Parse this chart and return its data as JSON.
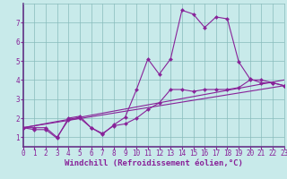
{
  "background_color": "#c8eaea",
  "plot_bg_color": "#c8eaea",
  "line_color": "#882299",
  "grid_color": "#88bbbb",
  "axis_color": "#663388",
  "xlabel": "Windchill (Refroidissement éolien,°C)",
  "xlim": [
    0,
    23
  ],
  "ylim": [
    0.5,
    8.0
  ],
  "xticks": [
    0,
    1,
    2,
    3,
    4,
    5,
    6,
    7,
    8,
    9,
    10,
    11,
    12,
    13,
    14,
    15,
    16,
    17,
    18,
    19,
    20,
    21,
    22,
    23
  ],
  "yticks": [
    1,
    2,
    3,
    4,
    5,
    6,
    7
  ],
  "line1_x": [
    0,
    1,
    2,
    3,
    4,
    5,
    6,
    7,
    8,
    9,
    10,
    11,
    12,
    13,
    14,
    15,
    16,
    17,
    18,
    19,
    20,
    21,
    22,
    23
  ],
  "line1_y": [
    1.5,
    1.5,
    1.5,
    1.0,
    1.9,
    2.0,
    1.5,
    1.2,
    1.6,
    1.7,
    2.0,
    2.45,
    2.8,
    3.5,
    3.5,
    3.4,
    3.5,
    3.5,
    3.5,
    3.6,
    4.0,
    4.0,
    3.85,
    3.7
  ],
  "line2_x": [
    0,
    1,
    2,
    3,
    4,
    5,
    6,
    7,
    8,
    9,
    10,
    11,
    12,
    13,
    14,
    15,
    16,
    17,
    18,
    19,
    20,
    21,
    22,
    23
  ],
  "line2_y": [
    1.5,
    1.4,
    1.4,
    0.95,
    2.0,
    2.1,
    1.5,
    1.15,
    1.65,
    2.05,
    3.5,
    5.1,
    4.3,
    5.1,
    7.65,
    7.45,
    6.75,
    7.3,
    7.2,
    4.95,
    4.05,
    3.85,
    3.85,
    3.7
  ],
  "line3_x": [
    0,
    23
  ],
  "line3_y": [
    1.5,
    3.7
  ],
  "line4_x": [
    0,
    23
  ],
  "line4_y": [
    1.5,
    4.0
  ],
  "tick_fontsize": 5.5,
  "label_fontsize": 6.5,
  "marker_size": 2.2,
  "lw": 0.8
}
